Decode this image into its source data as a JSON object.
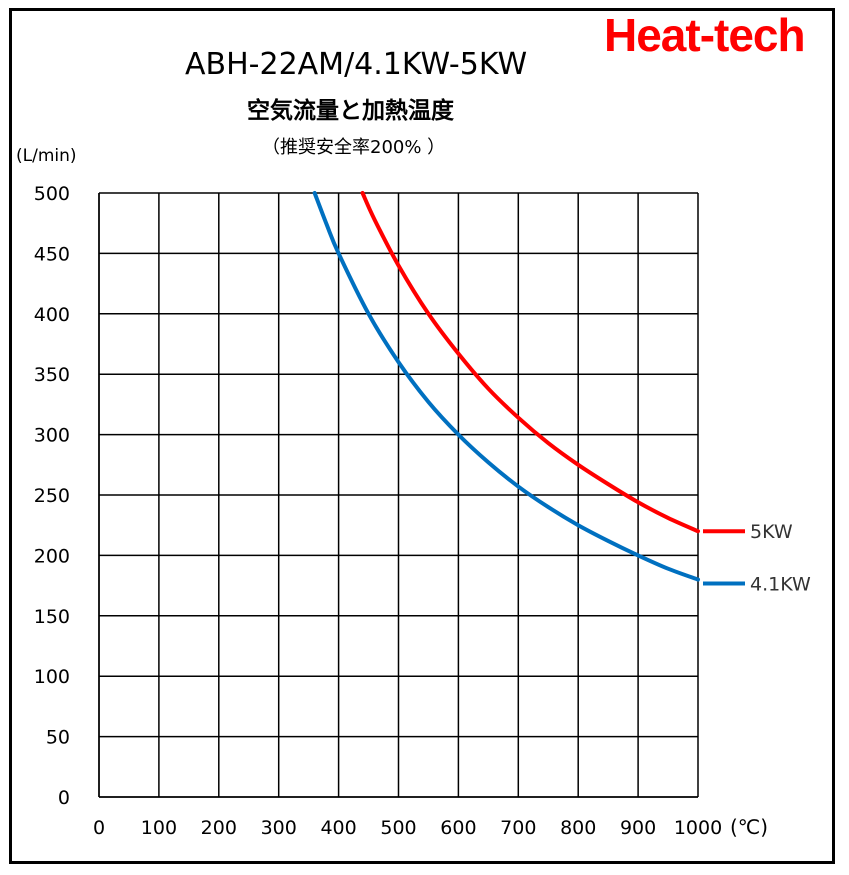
{
  "brand": "Heat-tech",
  "chart_data": {
    "type": "line",
    "title": "ABH-22AM/4.1KW-5KW",
    "subtitle": "空気流量と加熱温度",
    "note": "（推奨安全率200% ）",
    "ylabel": "(L/min)",
    "xlabel": "(℃)",
    "xlim": [
      0,
      1000
    ],
    "ylim": [
      0,
      500
    ],
    "xticks": [
      0,
      100,
      200,
      300,
      400,
      500,
      600,
      700,
      800,
      900,
      1000
    ],
    "yticks": [
      0,
      50,
      100,
      150,
      200,
      250,
      300,
      350,
      400,
      450,
      500
    ],
    "grid": true,
    "legend": "right",
    "series": [
      {
        "name": "5KW",
        "color": "#ff0000",
        "x": [
          440,
          460,
          500,
          550,
          600,
          650,
          700,
          750,
          800,
          850,
          900,
          950,
          1000
        ],
        "y": [
          500,
          478,
          440,
          400,
          367,
          338,
          314,
          293,
          275,
          259,
          244,
          231,
          220
        ]
      },
      {
        "name": "4.1KW",
        "color": "#0070c0",
        "x": [
          360,
          380,
          400,
          450,
          500,
          550,
          600,
          650,
          700,
          750,
          800,
          850,
          900,
          950,
          1000
        ],
        "y": [
          500,
          474,
          450,
          400,
          360,
          327,
          300,
          277,
          257,
          240,
          225,
          212,
          200,
          189,
          180
        ]
      }
    ]
  }
}
